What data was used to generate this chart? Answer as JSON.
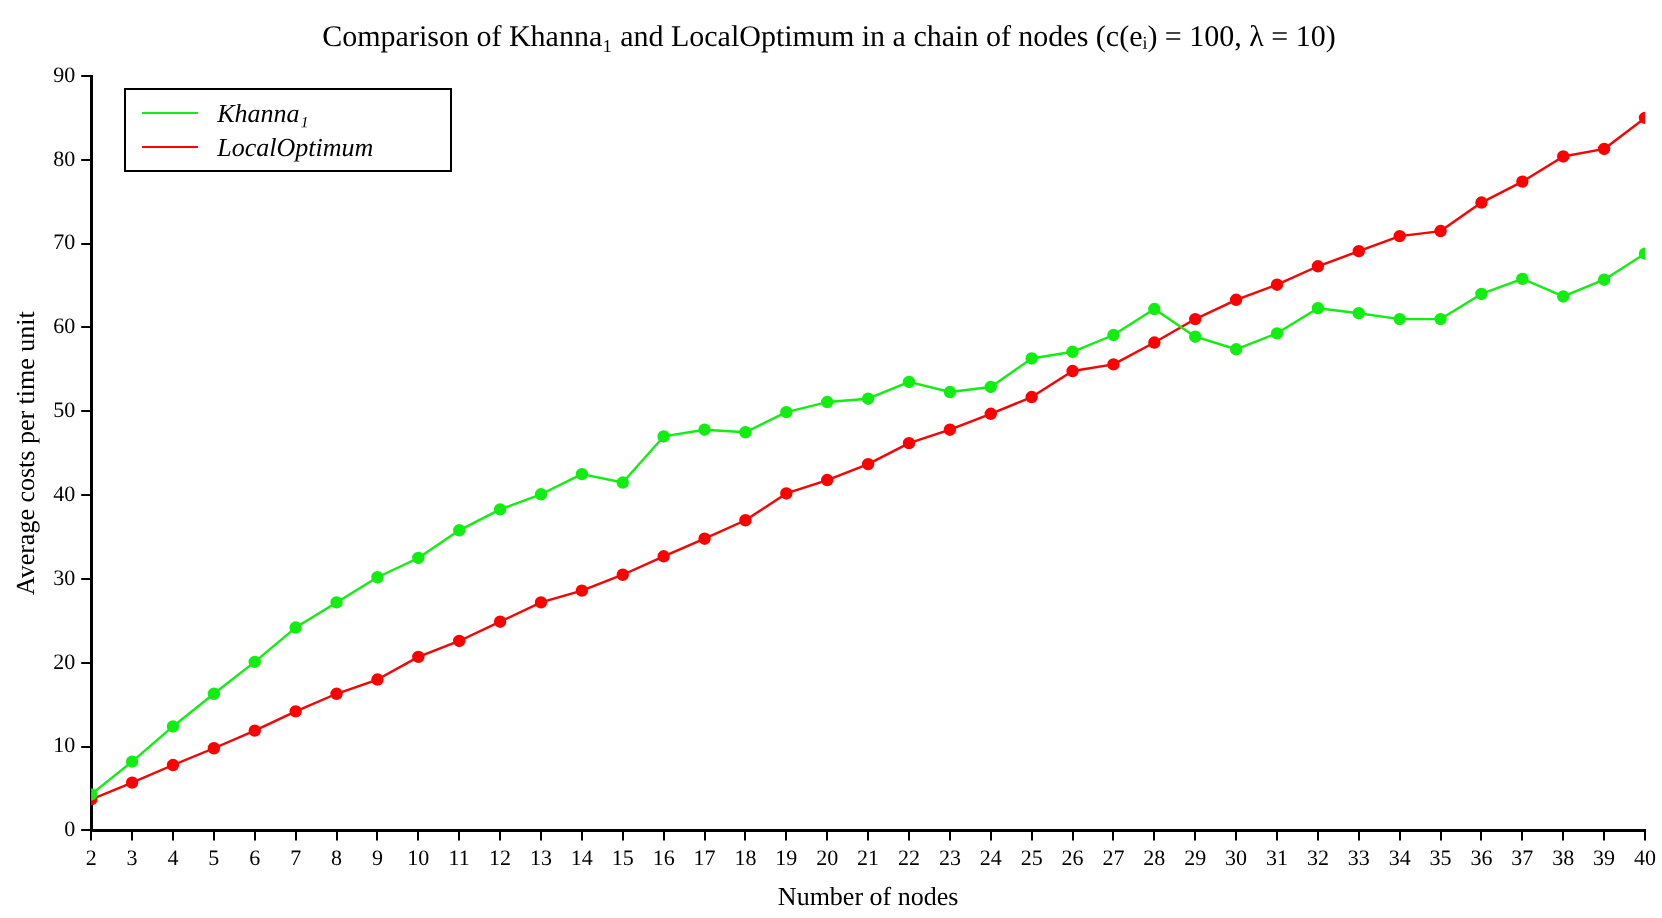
{
  "chart_data": {
    "type": "line",
    "title": "Comparison of Khanna₁ and LocalOptimum in a chain of nodes (c(eᵢ) = 100, λ = 10)",
    "xlabel": "Number of nodes",
    "ylabel": "Average costs per time unit",
    "x": [
      2,
      3,
      4,
      5,
      6,
      7,
      8,
      9,
      10,
      11,
      12,
      13,
      14,
      15,
      16,
      17,
      18,
      19,
      20,
      21,
      22,
      23,
      24,
      25,
      26,
      27,
      28,
      29,
      30,
      31,
      32,
      33,
      34,
      35,
      36,
      37,
      38,
      39,
      40
    ],
    "series": [
      {
        "name": "Khanna₁",
        "color": "#11ee11",
        "values": [
          4.3,
          8.2,
          12.4,
          16.3,
          20.1,
          24.2,
          27.2,
          30.2,
          32.5,
          35.8,
          38.3,
          40.1,
          42.5,
          41.5,
          47.0,
          47.8,
          47.5,
          49.9,
          51.1,
          51.5,
          53.5,
          52.3,
          52.9,
          56.3,
          57.1,
          59.1,
          62.2,
          58.9,
          57.4,
          59.3,
          62.3,
          61.7,
          61.0,
          61.0,
          64.0,
          65.8,
          63.7,
          65.7,
          68.8
        ]
      },
      {
        "name": "LocalOptimum",
        "color": "#ff0000",
        "values": [
          3.7,
          5.7,
          7.8,
          9.8,
          11.9,
          14.2,
          16.3,
          18.0,
          20.7,
          22.6,
          24.9,
          27.2,
          28.6,
          30.5,
          32.7,
          34.8,
          37.0,
          40.2,
          41.8,
          43.7,
          46.2,
          47.8,
          49.7,
          51.7,
          54.8,
          55.6,
          58.2,
          61.0,
          63.3,
          65.1,
          67.3,
          69.1,
          70.9,
          71.5,
          74.9,
          77.4,
          80.4,
          81.3,
          85.0
        ]
      }
    ],
    "xlim": [
      2,
      40
    ],
    "xticks": [
      2,
      3,
      4,
      5,
      6,
      7,
      8,
      9,
      10,
      11,
      12,
      13,
      14,
      15,
      16,
      17,
      18,
      19,
      20,
      21,
      22,
      23,
      24,
      25,
      26,
      27,
      28,
      29,
      30,
      31,
      32,
      33,
      34,
      35,
      36,
      37,
      38,
      39,
      40
    ],
    "ylim": [
      0,
      90
    ],
    "yticks": [
      0,
      10,
      20,
      30,
      40,
      50,
      60,
      70,
      80,
      90
    ],
    "grid": false,
    "legend": "top left",
    "marker": "circle",
    "line_style": "solid"
  }
}
